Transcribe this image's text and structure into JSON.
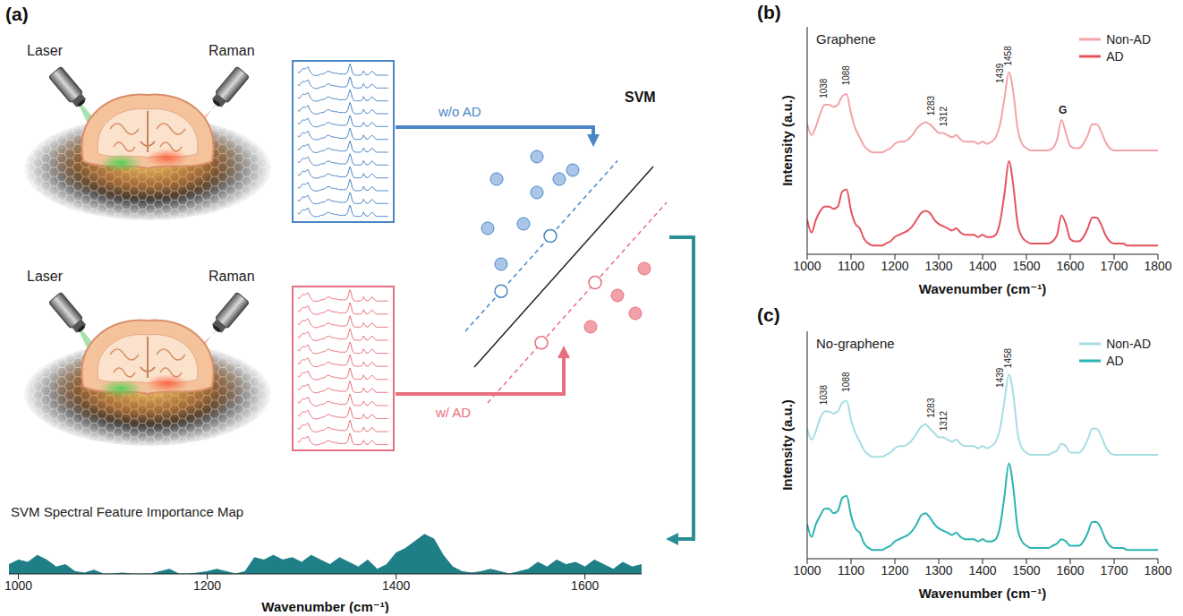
{
  "diagram": {
    "panel": "(a)",
    "scenes": [
      {
        "laser": "Laser",
        "raman": "Raman",
        "arrow_label": "w/o AD",
        "color": "#4a86c5"
      },
      {
        "laser": "Laser",
        "raman": "Raman",
        "arrow_label": "w/ AD",
        "color": "#e8707e"
      }
    ],
    "classifier": "SVM"
  },
  "chart_data": [
    {
      "type": "area",
      "title": "SVM Spectral Feature Importance Map",
      "x_label": "Wavenumber (cm⁻¹)",
      "x": [
        990,
        1000,
        1010,
        1020,
        1030,
        1040,
        1050,
        1060,
        1070,
        1080,
        1090,
        1100,
        1110,
        1120,
        1130,
        1140,
        1150,
        1160,
        1170,
        1180,
        1190,
        1200,
        1210,
        1220,
        1230,
        1240,
        1250,
        1260,
        1270,
        1280,
        1290,
        1300,
        1310,
        1320,
        1330,
        1340,
        1350,
        1360,
        1370,
        1380,
        1390,
        1400,
        1410,
        1420,
        1430,
        1440,
        1450,
        1460,
        1470,
        1480,
        1490,
        1500,
        1510,
        1520,
        1530,
        1540,
        1550,
        1560,
        1570,
        1580,
        1590,
        1600,
        1610,
        1620,
        1630,
        1640,
        1650,
        1660
      ],
      "values": [
        0.2,
        0.3,
        0.25,
        0.4,
        0.3,
        0.15,
        0.2,
        0.05,
        0.02,
        0.08,
        0.0,
        0.0,
        0.02,
        0.0,
        0.0,
        0.0,
        0.05,
        0.1,
        0.0,
        0.0,
        0.02,
        0.05,
        0.1,
        0.05,
        0.0,
        0.05,
        0.35,
        0.3,
        0.4,
        0.3,
        0.35,
        0.25,
        0.4,
        0.3,
        0.2,
        0.35,
        0.25,
        0.15,
        0.3,
        0.1,
        0.2,
        0.45,
        0.55,
        0.7,
        0.85,
        0.75,
        0.4,
        0.15,
        0.05,
        0.02,
        0.05,
        0.1,
        0.05,
        0.0,
        0.05,
        0.1,
        0.25,
        0.15,
        0.3,
        0.2,
        0.25,
        0.15,
        0.3,
        0.2,
        0.1,
        0.25,
        0.15,
        0.2
      ],
      "color": "#1f7f86",
      "xlim": [
        990,
        1660
      ],
      "xticks": [
        1000,
        1200,
        1400,
        1600
      ],
      "ylim": [
        0,
        1
      ],
      "tick_labels": "x"
    },
    {
      "type": "line",
      "panel": "(b)",
      "title": "Graphene",
      "x_label": "Wavenumber (cm⁻¹)",
      "y_label": "Intensity (a.u.)",
      "x": [
        1000,
        1010,
        1020,
        1030,
        1040,
        1050,
        1060,
        1070,
        1080,
        1090,
        1100,
        1110,
        1120,
        1130,
        1140,
        1150,
        1160,
        1170,
        1180,
        1190,
        1200,
        1210,
        1220,
        1230,
        1240,
        1250,
        1260,
        1270,
        1280,
        1290,
        1300,
        1310,
        1320,
        1330,
        1340,
        1350,
        1360,
        1370,
        1380,
        1390,
        1400,
        1410,
        1420,
        1430,
        1440,
        1450,
        1460,
        1470,
        1480,
        1490,
        1500,
        1510,
        1520,
        1530,
        1540,
        1550,
        1560,
        1570,
        1580,
        1590,
        1600,
        1610,
        1620,
        1630,
        1640,
        1650,
        1660,
        1670,
        1680,
        1690,
        1700,
        1710,
        1720,
        1730,
        1740,
        1750,
        1760,
        1770,
        1780,
        1790,
        1800
      ],
      "series": [
        {
          "name": "Non-AD",
          "color": "#f4a3a8",
          "values": [
            6.0,
            5.5,
            5.9,
            6.5,
            6.9,
            6.9,
            6.8,
            6.9,
            7.3,
            7.4,
            6.5,
            5.8,
            5.4,
            5.0,
            4.8,
            4.7,
            4.7,
            4.7,
            4.8,
            4.9,
            5.1,
            5.2,
            5.2,
            5.3,
            5.5,
            5.8,
            6.0,
            6.1,
            6.0,
            5.8,
            5.6,
            5.6,
            5.5,
            5.4,
            5.5,
            5.3,
            5.2,
            5.2,
            5.2,
            5.1,
            5.2,
            5.1,
            5.2,
            5.4,
            6.0,
            7.2,
            8.4,
            7.5,
            5.8,
            5.1,
            4.9,
            4.8,
            4.8,
            4.8,
            4.8,
            4.8,
            4.9,
            5.3,
            6.2,
            5.6,
            5.0,
            4.9,
            4.9,
            5.1,
            5.5,
            6.0,
            6.0,
            5.7,
            5.2,
            4.9,
            4.8,
            4.8,
            4.8,
            4.8,
            4.8,
            4.8,
            4.8,
            4.8,
            4.8,
            4.8,
            4.8
          ]
        },
        {
          "name": "AD",
          "color": "#e5545e",
          "values": [
            1.6,
            1.0,
            1.6,
            2.0,
            2.2,
            2.2,
            2.1,
            2.2,
            2.9,
            3.0,
            2.0,
            1.4,
            1.2,
            0.7,
            0.5,
            0.4,
            0.4,
            0.4,
            0.5,
            0.6,
            0.8,
            0.9,
            1.0,
            1.1,
            1.3,
            1.6,
            1.9,
            2.0,
            1.9,
            1.6,
            1.4,
            1.3,
            1.2,
            1.1,
            1.2,
            1.0,
            0.9,
            0.9,
            0.9,
            0.8,
            0.9,
            0.8,
            0.8,
            0.9,
            1.5,
            2.8,
            4.3,
            3.2,
            1.4,
            0.8,
            0.6,
            0.5,
            0.5,
            0.5,
            0.5,
            0.5,
            0.6,
            0.9,
            1.8,
            1.4,
            0.7,
            0.6,
            0.6,
            0.8,
            1.2,
            1.7,
            1.7,
            1.4,
            0.9,
            0.6,
            0.5,
            0.5,
            0.5,
            0.4,
            0.4,
            0.4,
            0.4,
            0.4,
            0.4,
            0.4,
            0.4
          ]
        }
      ],
      "annotations": [
        {
          "x": 1038,
          "y": 7.2,
          "label": "1038"
        },
        {
          "x": 1088,
          "y": 7.8,
          "label": "1088"
        },
        {
          "x": 1283,
          "y": 6.4,
          "label": "1283"
        },
        {
          "x": 1312,
          "y": 5.9,
          "label": "1312"
        },
        {
          "x": 1439,
          "y": 7.9,
          "label": "1439"
        },
        {
          "x": 1458,
          "y": 8.7,
          "label": "1458"
        },
        {
          "x": 1583,
          "y": 6.5,
          "label": "G"
        }
      ],
      "xlim": [
        1000,
        1800
      ],
      "xticks": [
        1000,
        1100,
        1200,
        1300,
        1400,
        1500,
        1600,
        1700,
        1800
      ],
      "ylim": [
        0,
        10.5
      ],
      "legend": "top right",
      "tick_labels": "x"
    },
    {
      "type": "line",
      "panel": "(c)",
      "title": "No-graphene",
      "x_label": "Wavenumber (cm⁻¹)",
      "y_label": "Intensity (a.u.)",
      "x": [
        1000,
        1010,
        1020,
        1030,
        1040,
        1050,
        1060,
        1070,
        1080,
        1090,
        1100,
        1110,
        1120,
        1130,
        1140,
        1150,
        1160,
        1170,
        1180,
        1190,
        1200,
        1210,
        1220,
        1230,
        1240,
        1250,
        1260,
        1270,
        1280,
        1290,
        1300,
        1310,
        1320,
        1330,
        1340,
        1350,
        1360,
        1370,
        1380,
        1390,
        1400,
        1410,
        1420,
        1430,
        1440,
        1450,
        1460,
        1470,
        1480,
        1490,
        1500,
        1510,
        1520,
        1530,
        1540,
        1550,
        1560,
        1570,
        1580,
        1590,
        1600,
        1610,
        1620,
        1630,
        1640,
        1650,
        1660,
        1670,
        1680,
        1690,
        1700,
        1710,
        1720,
        1730,
        1740,
        1750,
        1760,
        1770,
        1780,
        1790,
        1800
      ],
      "series": [
        {
          "name": "Non-AD",
          "color": "#a6dde2",
          "values": [
            6.0,
            5.5,
            5.9,
            6.5,
            6.8,
            6.8,
            6.7,
            6.8,
            7.2,
            7.3,
            6.4,
            5.8,
            5.4,
            5.0,
            4.8,
            4.7,
            4.7,
            4.7,
            4.8,
            4.9,
            5.1,
            5.2,
            5.2,
            5.3,
            5.5,
            5.8,
            6.1,
            6.2,
            6.0,
            5.8,
            5.6,
            5.6,
            5.5,
            5.4,
            5.5,
            5.3,
            5.2,
            5.2,
            5.2,
            5.1,
            5.2,
            5.1,
            5.2,
            5.4,
            6.0,
            7.3,
            8.5,
            7.6,
            5.8,
            5.1,
            4.9,
            4.8,
            4.8,
            4.8,
            4.8,
            4.8,
            4.9,
            5.0,
            5.3,
            5.2,
            4.9,
            4.9,
            4.9,
            5.1,
            5.5,
            6.0,
            6.0,
            5.7,
            5.2,
            4.9,
            4.8,
            4.8,
            4.8,
            4.8,
            4.8,
            4.8,
            4.8,
            4.8,
            4.8,
            4.8,
            4.8
          ]
        },
        {
          "name": "AD",
          "color": "#2bb3b1",
          "values": [
            1.6,
            1.0,
            1.6,
            2.0,
            2.3,
            2.3,
            2.1,
            2.2,
            2.8,
            2.9,
            2.0,
            1.4,
            1.2,
            0.7,
            0.5,
            0.4,
            0.4,
            0.4,
            0.5,
            0.6,
            0.8,
            0.9,
            1.0,
            1.1,
            1.3,
            1.6,
            2.0,
            2.1,
            1.9,
            1.6,
            1.4,
            1.3,
            1.2,
            1.1,
            1.2,
            1.0,
            0.9,
            0.9,
            0.9,
            0.8,
            0.9,
            0.8,
            0.8,
            0.9,
            1.5,
            2.9,
            4.4,
            3.3,
            1.4,
            0.8,
            0.6,
            0.5,
            0.5,
            0.5,
            0.5,
            0.5,
            0.6,
            0.7,
            0.9,
            0.8,
            0.6,
            0.6,
            0.6,
            0.8,
            1.2,
            1.7,
            1.7,
            1.4,
            0.9,
            0.6,
            0.5,
            0.5,
            0.5,
            0.4,
            0.4,
            0.4,
            0.4,
            0.4,
            0.4,
            0.4,
            0.4
          ]
        }
      ],
      "annotations": [
        {
          "x": 1038,
          "y": 7.1,
          "label": "1038"
        },
        {
          "x": 1088,
          "y": 7.7,
          "label": "1088"
        },
        {
          "x": 1283,
          "y": 6.5,
          "label": "1283"
        },
        {
          "x": 1312,
          "y": 5.9,
          "label": "1312"
        },
        {
          "x": 1439,
          "y": 7.9,
          "label": "1439"
        },
        {
          "x": 1458,
          "y": 8.8,
          "label": "1458"
        }
      ],
      "xlim": [
        1000,
        1800
      ],
      "xticks": [
        1000,
        1100,
        1200,
        1300,
        1400,
        1500,
        1600,
        1700,
        1800
      ],
      "ylim": [
        0,
        10.5
      ],
      "legend": "top right",
      "tick_labels": "x"
    }
  ]
}
